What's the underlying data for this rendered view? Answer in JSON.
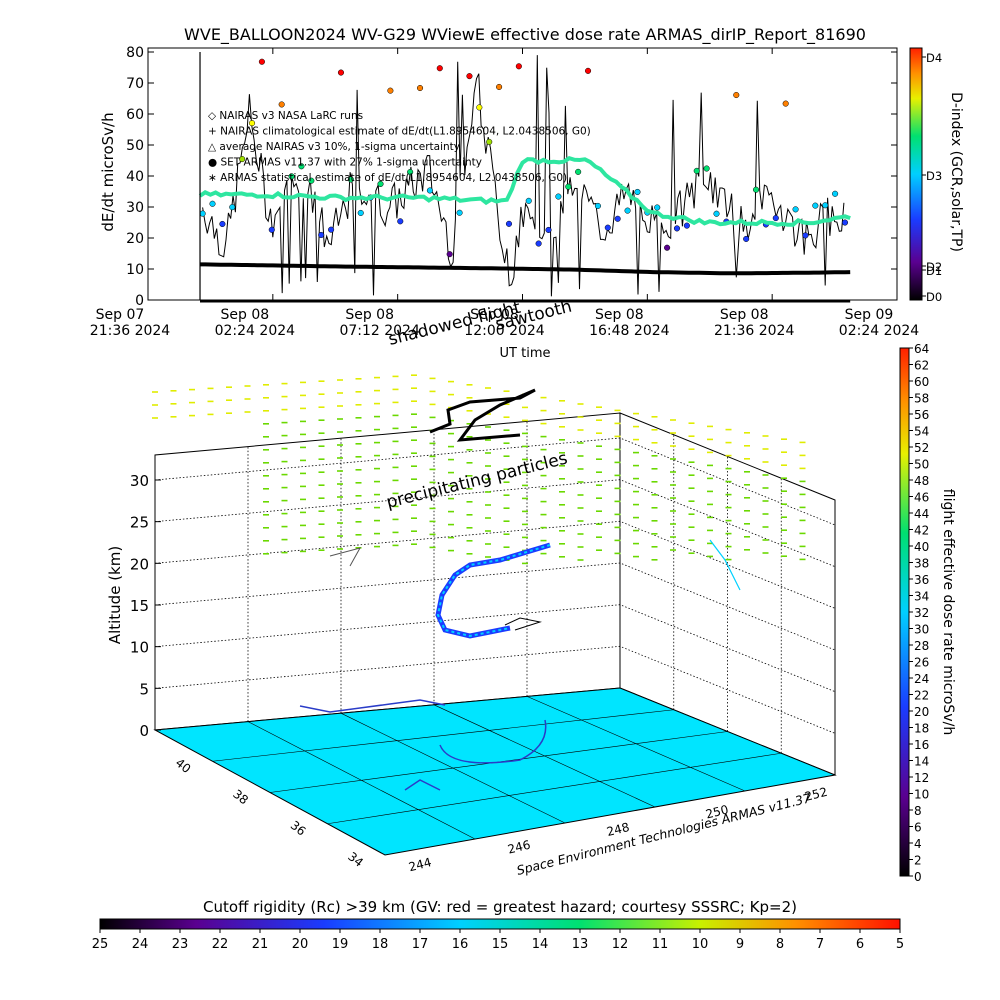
{
  "title": "WVE_BALLOON2024 WV-G29 WViewE effective dose rate ARMAS_dirIP_Report_81690",
  "top_chart": {
    "ylabel": "dE/dt microSv/h",
    "xlabel": "UT time",
    "yticks": [
      "0",
      "10",
      "20",
      "30",
      "40",
      "50",
      "60",
      "70",
      "80"
    ],
    "xticks": [
      {
        "d": "Sep 07",
        "t": "21:36 2024"
      },
      {
        "d": "Sep 08",
        "t": "02:24 2024"
      },
      {
        "d": "Sep 08",
        "t": "07:12 2024"
      },
      {
        "d": "Sep 08",
        "t": "12:00 2024"
      },
      {
        "d": "Sep 08",
        "t": "16:48 2024"
      },
      {
        "d": "Sep 08",
        "t": "21:36 2024"
      },
      {
        "d": "Sep 09",
        "t": "02:24 2024"
      }
    ],
    "legend": [
      "◇ NAIRAS v3 NASA LaRC runs",
      "+ NAIRAS climatological estimate of dE/dt(L1.8954604, L2.0438506, G0)",
      "△ average NAIRAS v3 10%, 1-sigma uncertainty",
      "● SET ARMAS v11.37 with 27% 1-sigma uncertainty",
      "∗ ARMAS statistical estimate of dE/dt(L1.8954604, L2.0438506, G0)"
    ],
    "annotations": [
      "shadowed flight",
      "sawtooth"
    ],
    "dindex_label": "D-index (GCR,solar,TP)",
    "dindex_ticks": [
      "D4",
      "D3",
      "D2",
      "D1",
      "D0"
    ]
  },
  "chart_data": [
    {
      "type": "scatter",
      "title": "WVE_BALLOON2024 WV-G29 WViewE effective dose rate ARMAS_dirIP_Report_81690",
      "xlabel": "UT time",
      "ylabel": "dE/dt microSv/h",
      "xlim": [
        "Sep 07 21:36 2024",
        "Sep 09 02:24 2024"
      ],
      "ylim": [
        0,
        80
      ],
      "series": [
        {
          "name": "NAIRAS climatological estimate of dE/dt(L1.8954604, L2.0438506, G0)",
          "x_hours_note_units": "Sep 08 hours UT",
          "x": [
            -0.4,
            2.0,
            5.0,
            8.0,
            10.6,
            11.4,
            12.0,
            14.5,
            17.0,
            19.0,
            23.0,
            24.6
          ],
          "values": [
            34,
            34,
            33,
            33,
            32,
            32,
            45,
            45,
            28,
            25,
            25,
            27
          ]
        },
        {
          "name": "ARMAS statistical estimate of dE/dt(L1.8954604, L2.0438506, G0)",
          "x": [
            -0.4,
            2.0,
            5.0,
            8.0,
            11.0,
            14.0,
            17.0,
            20.0,
            23.0,
            24.6
          ],
          "values": [
            11.5,
            11.2,
            10.8,
            10.5,
            10.2,
            9.8,
            9.0,
            8.6,
            8.8,
            9.0
          ]
        },
        {
          "name": "SET ARMAS v11.37 with 27% 1-sigma uncertainty",
          "x": [
            -0.3,
            0.6,
            1.5,
            2.3,
            3.5,
            4.6,
            5.4,
            6.9,
            8.4,
            9.3,
            10.2,
            11.3,
            12.1,
            13.1,
            14.0,
            15.1,
            16.0,
            17.5,
            19.0,
            20.4,
            21.7,
            22.8,
            24.0
          ],
          "values": [
            30,
            17,
            60,
            26,
            40,
            18,
            35,
            30,
            42,
            16,
            73,
            16,
            26,
            22,
            39,
            23,
            34,
            22,
            40,
            24,
            33,
            20,
            29
          ]
        }
      ]
    },
    {
      "type": "scatter",
      "title": "",
      "zlabel": "Altitude (km)",
      "zlim": [
        0,
        33
      ],
      "zticks": [
        0,
        5,
        10,
        15,
        20,
        25,
        30
      ],
      "lat_ticks": [
        34,
        36,
        38,
        40
      ],
      "lon_ticks": [
        244,
        246,
        248,
        250,
        252
      ],
      "colorbar_label": "flight effective dose rate microSv/h",
      "colorbar_ticks": [
        0,
        2,
        4,
        6,
        8,
        10,
        12,
        14,
        16,
        18,
        20,
        22,
        24,
        26,
        28,
        30,
        32,
        34,
        36,
        38,
        40,
        42,
        44,
        46,
        48,
        50,
        52,
        54,
        56,
        58,
        60,
        62,
        64
      ],
      "annotation": "precipitating particles",
      "credit": "Space Environment Technologies ARMAS v11.37"
    }
  ],
  "cutoff_bar": {
    "title": "Cutoff rigidity (Rc) >39 km (GV: red = greatest hazard; courtesy SSSRC; Kp=2)",
    "ticks": [
      "25",
      "24",
      "23",
      "22",
      "21",
      "20",
      "19",
      "18",
      "17",
      "16",
      "15",
      "14",
      "13",
      "12",
      "11",
      "10",
      "9",
      "8",
      "7",
      "6",
      "5"
    ]
  },
  "colors": {
    "nairas_clim": "#2ee6a0",
    "armas_stat": "#000000",
    "floor": "#00e5ff",
    "rainbow": [
      "#000000",
      "#5a0090",
      "#1a3cff",
      "#00d0ff",
      "#00e070",
      "#a0e000",
      "#ffff00",
      "#ff8000",
      "#ff0000"
    ]
  }
}
